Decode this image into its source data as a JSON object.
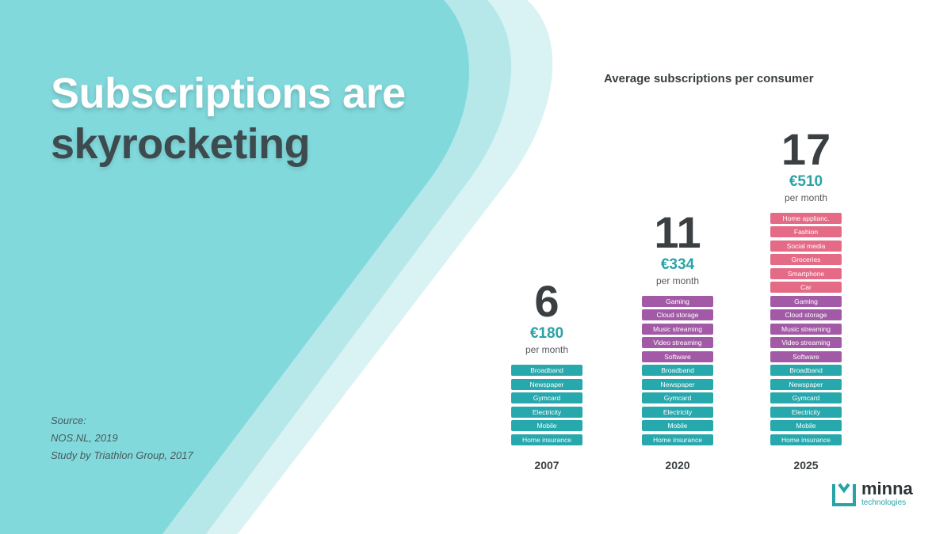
{
  "slide": {
    "title_line1": "Subscriptions are",
    "title_line2": "skyrocketing",
    "source": {
      "label": "Source:",
      "lines": [
        "NOS.NL, 2019",
        "Study by Triathlon Group, 2017"
      ]
    }
  },
  "logo": {
    "name": "minna",
    "sub": "technologies"
  },
  "colors": {
    "essential": "#27a8ad",
    "digital": "#a35aa6",
    "lifestyle": "#e46a86",
    "accent": "#2aa3a7",
    "background_shape": "#82d9dc"
  },
  "chart_data": {
    "type": "bar",
    "title": "Average subscriptions per consumer",
    "categories": [
      "2007",
      "2020",
      "2025"
    ],
    "values": [
      6,
      11,
      17
    ],
    "xlabel": "",
    "ylabel": "",
    "bars": [
      {
        "year": "2007",
        "count": "6",
        "price": "€180",
        "unit": "per month",
        "items": [
          "Broadband",
          "Newspaper",
          "Gymcard",
          "Electricity",
          "Mobile",
          "Home insurance"
        ],
        "groups": [
          "essential",
          "essential",
          "essential",
          "essential",
          "essential",
          "essential"
        ]
      },
      {
        "year": "2020",
        "count": "11",
        "price": "€334",
        "unit": "per month",
        "items": [
          "Gaming",
          "Cloud storage",
          "Music streaming",
          "Video streaming",
          "Software",
          "Broadband",
          "Newspaper",
          "Gymcard",
          "Electricity",
          "Mobile",
          "Home insurance"
        ],
        "groups": [
          "digital",
          "digital",
          "digital",
          "digital",
          "digital",
          "essential",
          "essential",
          "essential",
          "essential",
          "essential",
          "essential"
        ]
      },
      {
        "year": "2025",
        "count": "17",
        "price": "€510",
        "unit": "per month",
        "items": [
          "Home applianc.",
          "Fashion",
          "Social media",
          "Groceries",
          "Smartphone",
          "Car",
          "Gaming",
          "Cloud storage",
          "Music streaming",
          "Video streaming",
          "Software",
          "Broadband",
          "Newspaper",
          "Gymcard",
          "Electricity",
          "Mobile",
          "Home insurance"
        ],
        "groups": [
          "lifestyle",
          "lifestyle",
          "lifestyle",
          "lifestyle",
          "lifestyle",
          "lifestyle",
          "digital",
          "digital",
          "digital",
          "digital",
          "digital",
          "essential",
          "essential",
          "essential",
          "essential",
          "essential",
          "essential"
        ]
      }
    ]
  }
}
